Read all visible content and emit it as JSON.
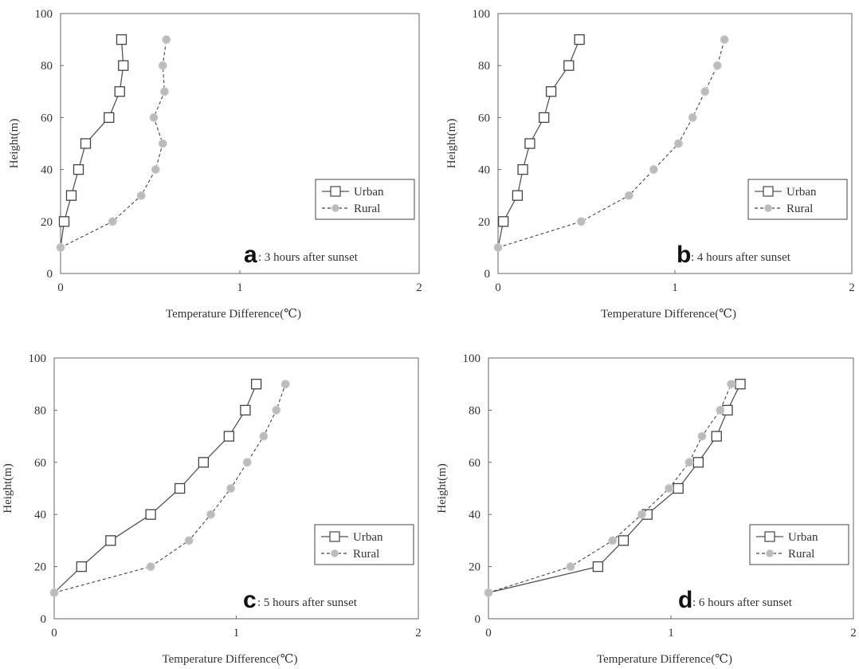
{
  "chart_data": [
    {
      "type": "line",
      "panel_letter": "a",
      "panel_label": ": 3 hours after sunset",
      "xlabel": "Temperature    Difference(℃)",
      "ylabel": "Height(m)",
      "xlim": [
        0,
        2
      ],
      "ylim": [
        0,
        100
      ],
      "xticks": [
        "0",
        "1",
        "2"
      ],
      "yticks": [
        "0",
        "20",
        "40",
        "60",
        "80",
        "100"
      ],
      "grid": false,
      "legend_position": "lower-right",
      "series": [
        {
          "name": "Urban",
          "color": "#444444",
          "marker": "square",
          "line": "solid",
          "points": [
            [
              0.0,
              10
            ],
            [
              0.02,
              20
            ],
            [
              0.06,
              30
            ],
            [
              0.1,
              40
            ],
            [
              0.14,
              50
            ],
            [
              0.27,
              60
            ],
            [
              0.33,
              70
            ],
            [
              0.35,
              80
            ],
            [
              0.34,
              90
            ]
          ]
        },
        {
          "name": "Rural",
          "color": "#bbbbbb",
          "marker": "circle",
          "line": "dashed",
          "points": [
            [
              0.0,
              10
            ],
            [
              0.29,
              20
            ],
            [
              0.45,
              30
            ],
            [
              0.53,
              40
            ],
            [
              0.57,
              50
            ],
            [
              0.52,
              60
            ],
            [
              0.58,
              70
            ],
            [
              0.57,
              80
            ],
            [
              0.59,
              90
            ]
          ]
        }
      ]
    },
    {
      "type": "line",
      "panel_letter": "b",
      "panel_label": ": 4 hours after sunset",
      "xlabel": "Temperature    Difference(℃)",
      "ylabel": "Height(m)",
      "xlim": [
        0,
        2
      ],
      "ylim": [
        0,
        100
      ],
      "xticks": [
        "0",
        "1",
        "2"
      ],
      "yticks": [
        "0",
        "20",
        "40",
        "60",
        "80",
        "100"
      ],
      "grid": false,
      "legend_position": "lower-right",
      "series": [
        {
          "name": "Urban",
          "color": "#444444",
          "marker": "square",
          "line": "solid",
          "points": [
            [
              0.0,
              10
            ],
            [
              0.03,
              20
            ],
            [
              0.11,
              30
            ],
            [
              0.14,
              40
            ],
            [
              0.18,
              50
            ],
            [
              0.26,
              60
            ],
            [
              0.3,
              70
            ],
            [
              0.4,
              80
            ],
            [
              0.46,
              90
            ]
          ]
        },
        {
          "name": "Rural",
          "color": "#bbbbbb",
          "marker": "circle",
          "line": "dashed",
          "points": [
            [
              0.0,
              10
            ],
            [
              0.47,
              20
            ],
            [
              0.74,
              30
            ],
            [
              0.88,
              40
            ],
            [
              1.02,
              50
            ],
            [
              1.1,
              60
            ],
            [
              1.17,
              70
            ],
            [
              1.24,
              80
            ],
            [
              1.28,
              90
            ]
          ]
        }
      ]
    },
    {
      "type": "line",
      "panel_letter": "c",
      "panel_label": ": 5 hours after sunset",
      "xlabel": "Temperature    Difference(℃)",
      "ylabel": "Height(m)",
      "xlim": [
        0,
        2
      ],
      "ylim": [
        0,
        100
      ],
      "xticks": [
        "0",
        "1",
        "2"
      ],
      "yticks": [
        "0",
        "20",
        "40",
        "60",
        "80",
        "100"
      ],
      "grid": false,
      "legend_position": "lower-right",
      "series": [
        {
          "name": "Urban",
          "color": "#444444",
          "marker": "square",
          "line": "solid",
          "points": [
            [
              0.0,
              10
            ],
            [
              0.15,
              20
            ],
            [
              0.31,
              30
            ],
            [
              0.53,
              40
            ],
            [
              0.69,
              50
            ],
            [
              0.82,
              60
            ],
            [
              0.96,
              70
            ],
            [
              1.05,
              80
            ],
            [
              1.11,
              90
            ]
          ]
        },
        {
          "name": "Rural",
          "color": "#bbbbbb",
          "marker": "circle",
          "line": "dashed",
          "points": [
            [
              0.0,
              10
            ],
            [
              0.53,
              20
            ],
            [
              0.74,
              30
            ],
            [
              0.86,
              40
            ],
            [
              0.97,
              50
            ],
            [
              1.06,
              60
            ],
            [
              1.15,
              70
            ],
            [
              1.22,
              80
            ],
            [
              1.27,
              90
            ]
          ]
        }
      ]
    },
    {
      "type": "line",
      "panel_letter": "d",
      "panel_label": ": 6 hours after sunset",
      "xlabel": "Temperature    Difference(℃)",
      "ylabel": "Height(m)",
      "xlim": [
        0,
        2
      ],
      "ylim": [
        0,
        100
      ],
      "xticks": [
        "0",
        "1",
        "2"
      ],
      "yticks": [
        "0",
        "20",
        "40",
        "60",
        "80",
        "100"
      ],
      "grid": false,
      "legend_position": "lower-right",
      "series": [
        {
          "name": "Urban",
          "color": "#444444",
          "marker": "square",
          "line": "solid",
          "points": [
            [
              0.0,
              10
            ],
            [
              0.6,
              20
            ],
            [
              0.74,
              30
            ],
            [
              0.87,
              40
            ],
            [
              1.04,
              50
            ],
            [
              1.15,
              60
            ],
            [
              1.25,
              70
            ],
            [
              1.31,
              80
            ],
            [
              1.38,
              90
            ]
          ]
        },
        {
          "name": "Rural",
          "color": "#bbbbbb",
          "marker": "circle",
          "line": "dashed",
          "points": [
            [
              0.0,
              10
            ],
            [
              0.45,
              20
            ],
            [
              0.68,
              30
            ],
            [
              0.84,
              40
            ],
            [
              0.99,
              50
            ],
            [
              1.1,
              60
            ],
            [
              1.17,
              70
            ],
            [
              1.27,
              80
            ],
            [
              1.33,
              90
            ]
          ]
        }
      ]
    }
  ]
}
